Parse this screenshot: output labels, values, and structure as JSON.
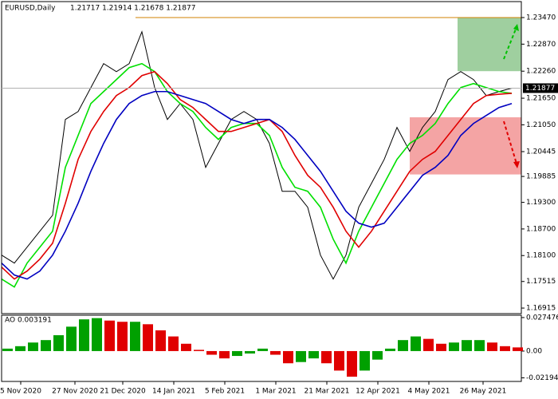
{
  "chart_data": [
    {
      "type": "line",
      "title": "EURUSD,Daily",
      "subtitle": "1.21717 1.21914 1.21678 1.21877",
      "x": [
        0,
        4,
        8,
        12,
        16,
        20,
        24,
        28,
        32,
        36,
        40,
        44,
        48,
        52,
        56,
        60,
        64,
        68,
        72,
        76,
        80,
        84,
        88,
        92,
        96,
        100,
        104,
        108,
        112,
        116,
        120,
        124,
        128,
        132,
        136,
        140,
        144,
        148,
        152,
        156,
        160
      ],
      "series": [
        {
          "color": "#000000",
          "values": [
            1.1811,
            1.1793,
            1.1829,
            1.1865,
            1.1901,
            1.2117,
            1.2135,
            1.2189,
            1.2243,
            1.2225,
            1.2243,
            1.2315,
            1.2189,
            1.2117,
            1.2153,
            1.2117,
            1.2009,
            1.2063,
            1.2117,
            1.2135,
            1.2117,
            1.2063,
            1.1955,
            1.1955,
            1.1919,
            1.1811,
            1.1757,
            1.1811,
            1.1919,
            1.1973,
            1.2027,
            1.2099,
            1.2045,
            1.2099,
            1.2135,
            1.2207,
            1.2225,
            1.2207,
            1.2171,
            1.218,
            1.21877
          ]
        },
        {
          "color": "#00e000",
          "values": [
            1.1757,
            1.1739,
            1.1793,
            1.1829,
            1.1865,
            1.2009,
            1.2081,
            1.2153,
            1.218,
            1.2207,
            1.2234,
            1.2243,
            1.2225,
            1.218,
            1.2153,
            1.2135,
            1.2099,
            1.2072,
            1.2099,
            1.2108,
            1.2108,
            1.2081,
            1.2009,
            1.1964,
            1.1955,
            1.1919,
            1.1847,
            1.1793,
            1.1865,
            1.1919,
            1.1973,
            1.2027,
            1.2063,
            1.2081,
            1.2108,
            1.2153,
            1.2189,
            1.2198,
            1.2189,
            1.218,
            1.2176
          ]
        },
        {
          "color": "#e00000",
          "values": [
            1.1784,
            1.1757,
            1.1775,
            1.1802,
            1.1838,
            1.1928,
            1.2027,
            1.209,
            1.2135,
            1.2171,
            1.2189,
            1.2216,
            1.2225,
            1.2198,
            1.2162,
            1.2144,
            1.2117,
            1.209,
            1.209,
            1.2099,
            1.2108,
            1.2117,
            1.209,
            1.2036,
            1.1991,
            1.1964,
            1.1919,
            1.1865,
            1.1829,
            1.1865,
            1.191,
            1.1955,
            1.2,
            1.2027,
            1.2045,
            1.2081,
            1.2117,
            1.2153,
            1.2171,
            1.2174,
            1.2176
          ]
        },
        {
          "color": "#0000c0",
          "values": [
            1.1793,
            1.1766,
            1.1757,
            1.1775,
            1.1811,
            1.1865,
            1.1928,
            1.2,
            1.2063,
            1.2117,
            1.2153,
            1.2171,
            1.218,
            1.218,
            1.2171,
            1.2162,
            1.2153,
            1.2135,
            1.2117,
            1.2108,
            1.2117,
            1.2117,
            1.2099,
            1.2072,
            1.2036,
            1.2,
            1.1955,
            1.191,
            1.1883,
            1.1874,
            1.1883,
            1.1919,
            1.1955,
            1.1991,
            1.2009,
            1.2036,
            1.2081,
            1.2108,
            1.2126,
            1.2144,
            1.2153
          ]
        }
      ],
      "last_price": 1.21877,
      "level": {
        "value": 1.2347,
        "from": 42,
        "color": "#d08000"
      },
      "zones": [
        {
          "top": 1.2347,
          "bottom": 1.2226,
          "from": 143,
          "color": "#9fcf9f"
        },
        {
          "top": 1.2122,
          "bottom": 1.1993,
          "from": 128,
          "color": "#f4a4a4"
        }
      ],
      "xlim": [
        0,
        163
      ],
      "ylim": [
        1.1679,
        1.2383
      ],
      "yticks": [
        {
          "value": 1.2347,
          "label": "1.23470"
        },
        {
          "value": 1.2287,
          "label": "1.22870"
        },
        {
          "value": 1.2226,
          "label": "1.22260"
        },
        {
          "value": 1.2165,
          "label": "1.21650"
        },
        {
          "value": 1.2105,
          "label": "1.21050"
        },
        1.20445,
        1.19885,
        {
          "value": 1.193,
          "label": "1.19300"
        },
        {
          "value": 1.187,
          "label": "1.18700"
        },
        {
          "value": 1.181,
          "label": "1.18100"
        },
        1.17515,
        1.16915
      ],
      "xticks": [
        {
          "value": 6,
          "label": "5 Nov 2020"
        },
        {
          "value": 23,
          "label": "27 Nov 2020"
        },
        {
          "value": 38,
          "label": "21 Dec 2020"
        },
        {
          "value": 54,
          "label": "14 Jan 2021"
        },
        {
          "value": 70,
          "label": "5 Feb 2021"
        },
        {
          "value": 86,
          "label": "1 Mar 2021"
        },
        {
          "value": 102,
          "label": "21 Mar 2021"
        },
        {
          "value": 118,
          "label": "12 Apr 2021"
        },
        {
          "value": 134,
          "label": "4 May 2021"
        },
        {
          "value": 151,
          "label": "26 May 2021"
        }
      ]
    },
    {
      "type": "histogram",
      "title": "AO 0.003191",
      "up_color": "#00a000",
      "down_color": "#e00000",
      "x": [
        0,
        4,
        8,
        12,
        16,
        20,
        24,
        28,
        32,
        36,
        40,
        44,
        48,
        52,
        56,
        60,
        64,
        68,
        72,
        76,
        80,
        84,
        88,
        92,
        96,
        100,
        104,
        108,
        112,
        116,
        120,
        124,
        128,
        132,
        136,
        140,
        144,
        148,
        152,
        156,
        160
      ],
      "values": [
        0.002,
        0.004,
        0.007,
        0.009,
        0.013,
        0.02,
        0.026,
        0.027,
        0.025,
        0.024,
        0.024,
        0.022,
        0.017,
        0.012,
        0.006,
        0.001,
        -0.003,
        -0.006,
        -0.004,
        -0.002,
        0.002,
        -0.003,
        -0.01,
        -0.009,
        -0.006,
        -0.01,
        -0.016,
        -0.021,
        -0.016,
        -0.007,
        0.002,
        0.009,
        0.012,
        0.01,
        0.006,
        0.007,
        0.009,
        0.009,
        0.007,
        0.004,
        0.003
      ],
      "xlim": [
        0,
        163
      ],
      "ylim": [
        -0.0249,
        0.0294
      ],
      "yticks": [
        0.027476,
        {
          "value": 0,
          "label": "0.00"
        },
        -0.021944
      ]
    }
  ]
}
